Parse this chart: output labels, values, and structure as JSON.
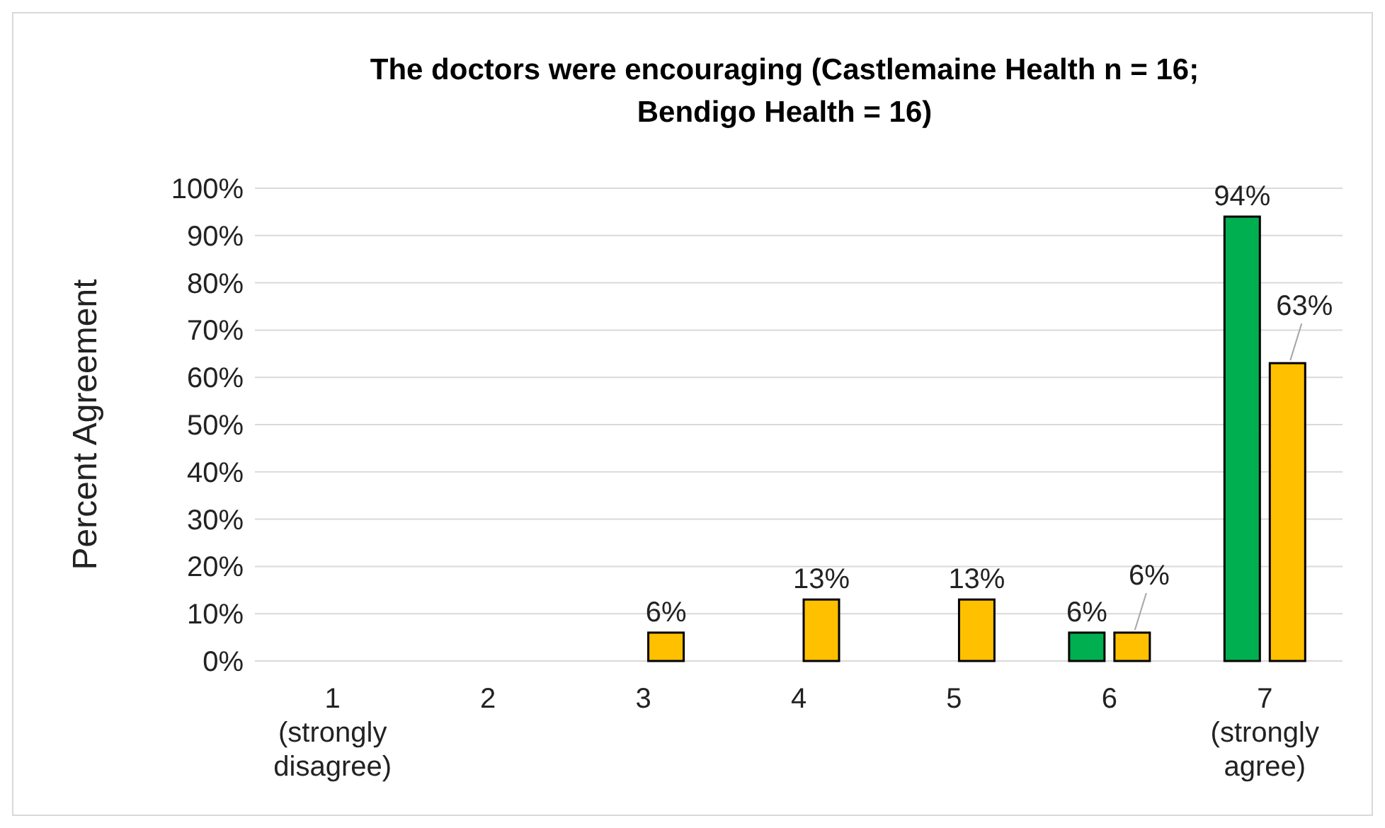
{
  "chart_data": {
    "type": "bar",
    "title": "The doctors were encouraging (Castlemaine Health n = 16; Bendigo Health = 16)",
    "ylabel": "Percent Agreement",
    "categories": [
      "1 (strongly disagree)",
      "2",
      "3",
      "4",
      "5",
      "6",
      "7 (strongly agree)"
    ],
    "series": [
      {
        "color": "#00b050",
        "values": [
          0,
          0,
          0,
          0,
          0,
          6,
          94
        ],
        "value_labels": [
          null,
          null,
          null,
          null,
          null,
          "6%",
          "94%"
        ]
      },
      {
        "color": "#ffc000",
        "values": [
          0,
          0,
          6,
          13,
          13,
          6,
          63
        ],
        "value_labels": [
          null,
          null,
          "6%",
          "13%",
          "13%",
          "6%",
          "63%"
        ]
      }
    ],
    "ylim": [
      0,
      100
    ],
    "yticks": [
      {
        "value": 0,
        "label": "0%"
      },
      {
        "value": 10,
        "label": "10%"
      },
      {
        "value": 20,
        "label": "20%"
      },
      {
        "value": 30,
        "label": "30%"
      },
      {
        "value": 40,
        "label": "40%"
      },
      {
        "value": 50,
        "label": "50%"
      },
      {
        "value": 60,
        "label": "60%"
      },
      {
        "value": 70,
        "label": "70%"
      },
      {
        "value": 80,
        "label": "80%"
      },
      {
        "value": 90,
        "label": "90%"
      },
      {
        "value": 100,
        "label": "100%"
      }
    ],
    "grid": "y"
  }
}
